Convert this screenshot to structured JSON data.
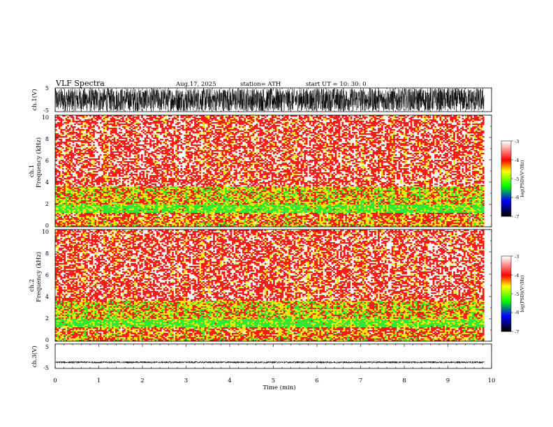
{
  "header": {
    "title": "VLF  Spectra",
    "date": "Aug.17, 2025",
    "station": "station= ATH",
    "start_ut": "start  UT  =    10: 30: 0"
  },
  "chart_data": [
    {
      "type": "line",
      "name": "ch1-waveform",
      "ylabel": "ch.1(V)",
      "ylim": [
        -5,
        5
      ],
      "yticks": [
        "5",
        "-5"
      ],
      "xlim": [
        0,
        10
      ],
      "amplitude_range": [
        -5,
        5
      ],
      "data_end_min": 9.83
    },
    {
      "type": "heatmap",
      "name": "ch1-spectrogram",
      "ylabel_top": "ch.1",
      "ylabel": "Frequency  (kHz)",
      "ylim": [
        0,
        10
      ],
      "yticks": [
        "0",
        "2",
        "4",
        "6",
        "8",
        "10"
      ],
      "xlim": [
        0,
        10
      ],
      "data_end_min": 9.83,
      "colorbar_label": "log(PSD)(V²/Hz)",
      "colorbar_ticks": [
        "-3",
        "-4",
        "-5",
        "-6",
        "-7"
      ],
      "colorbar_range": [
        -7,
        -3
      ],
      "bands_khz_to_logpsd": [
        {
          "from": 0,
          "to": 0.3,
          "level": -4.3
        },
        {
          "from": 0.3,
          "to": 0.8,
          "level": -4.1
        },
        {
          "from": 0.8,
          "to": 1.2,
          "level": -4.0
        },
        {
          "from": 1.2,
          "to": 2.0,
          "level": -5.0
        },
        {
          "from": 2.0,
          "to": 3.6,
          "level": -4.4
        },
        {
          "from": 3.6,
          "to": 10,
          "level": -3.6
        }
      ]
    },
    {
      "type": "heatmap",
      "name": "ch2-spectrogram",
      "ylabel_top": "ch.2",
      "ylabel": "Frequency  (kHz)",
      "ylim": [
        0,
        10
      ],
      "yticks": [
        "0",
        "2",
        "4",
        "6",
        "8",
        "10"
      ],
      "xlim": [
        0,
        10
      ],
      "data_end_min": 9.83,
      "colorbar_label": "log(PSD)(V²/Hz)",
      "colorbar_ticks": [
        "-3",
        "-4",
        "-5",
        "-6",
        "-7"
      ],
      "colorbar_range": [
        -7,
        -3
      ],
      "bands_khz_to_logpsd": [
        {
          "from": 0,
          "to": 0.3,
          "level": -4.3
        },
        {
          "from": 0.3,
          "to": 0.8,
          "level": -4.1
        },
        {
          "from": 0.8,
          "to": 1.2,
          "level": -4.0
        },
        {
          "from": 1.2,
          "to": 2.0,
          "level": -5.0
        },
        {
          "from": 2.0,
          "to": 3.6,
          "level": -4.4
        },
        {
          "from": 3.6,
          "to": 10,
          "level": -3.6
        }
      ]
    },
    {
      "type": "line",
      "name": "ch3-waveform",
      "ylabel": "ch.3(V)",
      "ylim": [
        -5,
        5
      ],
      "yticks": [
        "5",
        "-5"
      ],
      "xlim": [
        0,
        10
      ],
      "amplitude_range": [
        -0.4,
        0.4
      ],
      "offset": -2.5,
      "data_end_min": 9.83
    }
  ],
  "x_axis": {
    "label": "Time  (min)",
    "ticks": [
      "0",
      "1",
      "2",
      "3",
      "4",
      "5",
      "6",
      "7",
      "8",
      "9",
      "10"
    ]
  },
  "colors": {
    "waveform": "#000000",
    "spectro_white": "#ffffff",
    "spectro_red": "#ff1a1a",
    "spectro_yellow": "#f2ea00",
    "spectro_green": "#33e633"
  }
}
